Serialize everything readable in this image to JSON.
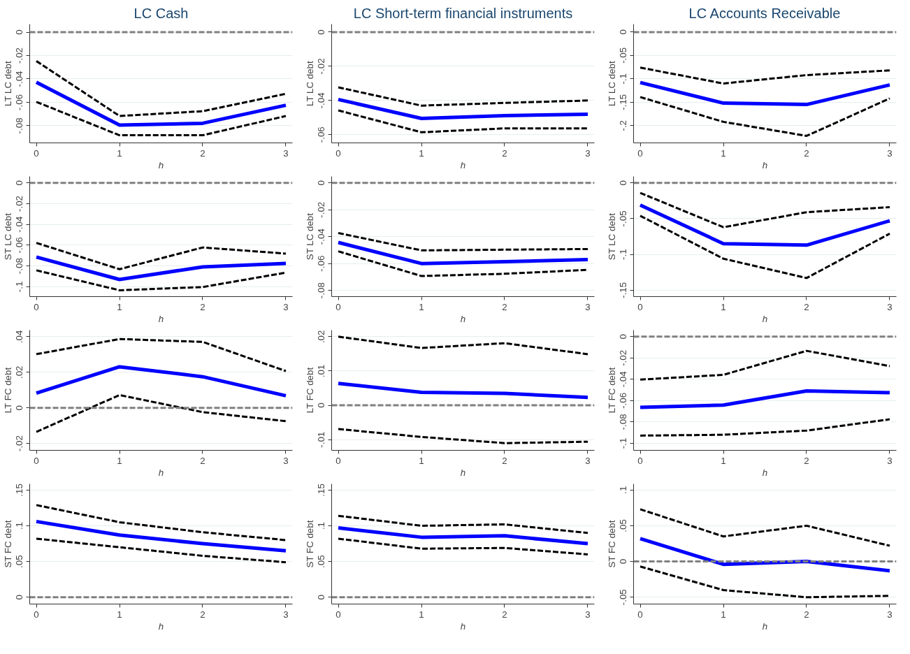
{
  "chart_data": [
    {
      "type": "line",
      "title": "LC Cash",
      "ylabel": "LT LC debt",
      "xlabel": "h",
      "x": [
        0,
        1,
        2,
        3
      ],
      "xlim": [
        -0.08,
        3.08
      ],
      "xticks": [
        0,
        1,
        2,
        3
      ],
      "ylim": [
        -0.0947,
        0.0069
      ],
      "yticks": [
        0,
        {
          "value": -0.02,
          "label": "-.02"
        },
        {
          "value": -0.04,
          "label": "-.04"
        },
        {
          "value": -0.06,
          "label": "-.06"
        },
        {
          "value": -0.08,
          "label": "-.08"
        }
      ],
      "grid": "y",
      "ref_lines": [
        {
          "axis": "y",
          "value": 0,
          "color": "#808080",
          "line_style": "dashed"
        }
      ],
      "series": [
        {
          "color": "#000000",
          "line_style": "dashed",
          "values": [
            -0.0247,
            -0.0717,
            -0.0676,
            -0.0527
          ]
        },
        {
          "color": "#0000ff",
          "line_style": "solid",
          "values": [
            -0.0428,
            -0.0795,
            -0.0779,
            -0.0625
          ]
        },
        {
          "color": "#000000",
          "line_style": "dashed",
          "values": [
            -0.0596,
            -0.0882,
            -0.0882,
            -0.0717
          ]
        }
      ]
    },
    {
      "type": "line",
      "title": "LC Short-term financial instruments",
      "ylabel": "LT LC debt",
      "xlabel": "h",
      "x": [
        0,
        1,
        2,
        3
      ],
      "xlim": [
        -0.08,
        3.08
      ],
      "xticks": [
        0,
        1,
        2,
        3
      ],
      "ylim": [
        -0.0648,
        0.0047
      ],
      "yticks": [
        0,
        {
          "value": -0.02,
          "label": "-.02"
        },
        {
          "value": -0.04,
          "label": "-.04"
        },
        {
          "value": -0.06,
          "label": "-.06"
        }
      ],
      "grid": "y",
      "ref_lines": [
        {
          "axis": "y",
          "value": 0,
          "color": "#808080",
          "line_style": "dashed"
        }
      ],
      "series": [
        {
          "color": "#000000",
          "line_style": "dashed",
          "values": [
            -0.0323,
            -0.043,
            -0.0414,
            -0.04
          ]
        },
        {
          "color": "#0000ff",
          "line_style": "solid",
          "values": [
            -0.0394,
            -0.0505,
            -0.0489,
            -0.048
          ]
        },
        {
          "color": "#000000",
          "line_style": "dashed",
          "values": [
            -0.0458,
            -0.0586,
            -0.0563,
            -0.0563
          ]
        }
      ]
    },
    {
      "type": "line",
      "title": "LC Accounts Receivable",
      "ylabel": "LT LC debt",
      "xlabel": "h",
      "x": [
        0,
        1,
        2,
        3
      ],
      "xlim": [
        -0.08,
        3.08
      ],
      "xticks": [
        0,
        1,
        2,
        3
      ],
      "ylim": [
        -0.237,
        0.017
      ],
      "yticks": [
        0,
        {
          "value": -0.05,
          "label": "-.05"
        },
        {
          "value": -0.1,
          "label": "-.1"
        },
        {
          "value": -0.15,
          "label": "-.15"
        },
        {
          "value": -0.2,
          "label": "-.2"
        }
      ],
      "grid": "y",
      "ref_lines": [
        {
          "axis": "y",
          "value": 0,
          "color": "#808080",
          "line_style": "dashed"
        }
      ],
      "series": [
        {
          "color": "#000000",
          "line_style": "dashed",
          "values": [
            -0.076,
            -0.11,
            -0.092,
            -0.082
          ]
        },
        {
          "color": "#0000ff",
          "line_style": "solid",
          "values": [
            -0.108,
            -0.152,
            -0.155,
            -0.113
          ]
        },
        {
          "color": "#000000",
          "line_style": "dashed",
          "values": [
            -0.139,
            -0.192,
            -0.222,
            -0.142
          ]
        }
      ]
    },
    {
      "type": "line",
      "ylabel": "ST LC debt",
      "xlabel": "h",
      "x": [
        0,
        1,
        2,
        3
      ],
      "xlim": [
        -0.08,
        3.08
      ],
      "xticks": [
        0,
        1,
        2,
        3
      ],
      "ylim": [
        -0.1095,
        0.0062
      ],
      "yticks": [
        0,
        {
          "value": -0.02,
          "label": "-.02"
        },
        {
          "value": -0.04,
          "label": "-.04"
        },
        {
          "value": -0.06,
          "label": "-.06"
        },
        {
          "value": -0.08,
          "label": "-.08"
        },
        {
          "value": -0.1,
          "label": "-.1"
        }
      ],
      "grid": "y",
      "ref_lines": [
        {
          "axis": "y",
          "value": 0,
          "color": "#808080",
          "line_style": "dashed"
        }
      ],
      "series": [
        {
          "color": "#000000",
          "line_style": "dashed",
          "values": [
            -0.0578,
            -0.0831,
            -0.0622,
            -0.0681
          ]
        },
        {
          "color": "#0000ff",
          "line_style": "solid",
          "values": [
            -0.0714,
            -0.093,
            -0.0809,
            -0.0776
          ]
        },
        {
          "color": "#000000",
          "line_style": "dashed",
          "values": [
            -0.0842,
            -0.1034,
            -0.1003,
            -0.0864
          ]
        }
      ]
    },
    {
      "type": "line",
      "ylabel": "ST LC debt",
      "xlabel": "h",
      "x": [
        0,
        1,
        2,
        3
      ],
      "xlim": [
        -0.08,
        3.08
      ],
      "xticks": [
        0,
        1,
        2,
        3
      ],
      "ylim": [
        -0.0846,
        0.0048
      ],
      "yticks": [
        0,
        {
          "value": -0.02,
          "label": "-.02"
        },
        {
          "value": -0.04,
          "label": "-.04"
        },
        {
          "value": -0.06,
          "label": "-.06"
        },
        {
          "value": -0.08,
          "label": "-.08"
        }
      ],
      "grid": "y",
      "ref_lines": [
        {
          "axis": "y",
          "value": 0,
          "color": "#808080",
          "line_style": "dashed"
        }
      ],
      "series": [
        {
          "color": "#000000",
          "line_style": "dashed",
          "values": [
            -0.0373,
            -0.0502,
            -0.0497,
            -0.0492
          ]
        },
        {
          "color": "#0000ff",
          "line_style": "solid",
          "values": [
            -0.0443,
            -0.06,
            -0.0586,
            -0.057
          ]
        },
        {
          "color": "#000000",
          "line_style": "dashed",
          "values": [
            -0.0509,
            -0.0693,
            -0.0676,
            -0.0647
          ]
        }
      ]
    },
    {
      "type": "line",
      "ylabel": "ST LC debt",
      "xlabel": "h",
      "x": [
        0,
        1,
        2,
        3
      ],
      "xlim": [
        -0.08,
        3.08
      ],
      "xticks": [
        0,
        1,
        2,
        3
      ],
      "ylim": [
        -0.159,
        0.009
      ],
      "yticks": [
        0,
        {
          "value": -0.05,
          "label": "-.05"
        },
        {
          "value": -0.1,
          "label": "-.1"
        },
        {
          "value": -0.15,
          "label": "-.15"
        }
      ],
      "grid": "y",
      "ref_lines": [
        {
          "axis": "y",
          "value": 0,
          "color": "#808080",
          "line_style": "dashed"
        }
      ],
      "series": [
        {
          "color": "#000000",
          "line_style": "dashed",
          "values": [
            -0.014,
            -0.062,
            -0.041,
            -0.034
          ]
        },
        {
          "color": "#0000ff",
          "line_style": "solid",
          "values": [
            -0.031,
            -0.085,
            -0.087,
            -0.053
          ]
        },
        {
          "color": "#000000",
          "line_style": "dashed",
          "values": [
            -0.046,
            -0.106,
            -0.133,
            -0.071
          ]
        }
      ]
    },
    {
      "type": "line",
      "ylabel": "LT FC debt",
      "xlabel": "h",
      "x": [
        0,
        1,
        2,
        3
      ],
      "xlim": [
        -0.08,
        3.08
      ],
      "xticks": [
        0,
        1,
        2,
        3
      ],
      "ylim": [
        -0.0239,
        0.0437
      ],
      "yticks": [
        {
          "value": 0.04,
          "label": ".04"
        },
        {
          "value": 0.02,
          "label": ".02"
        },
        0,
        {
          "value": -0.02,
          "label": "-.02"
        }
      ],
      "grid": "y",
      "ref_lines": [
        {
          "axis": "y",
          "value": 0,
          "color": "#808080",
          "line_style": "dashed"
        }
      ],
      "series": [
        {
          "color": "#000000",
          "line_style": "dashed",
          "values": [
            0.0302,
            0.0387,
            0.0371,
            0.0207
          ]
        },
        {
          "color": "#0000ff",
          "line_style": "solid",
          "values": [
            0.0083,
            0.0231,
            0.0175,
            0.0068
          ]
        },
        {
          "color": "#000000",
          "line_style": "dashed",
          "values": [
            -0.0135,
            0.0072,
            -0.0024,
            -0.0075
          ]
        }
      ]
    },
    {
      "type": "line",
      "ylabel": "LT FC debt",
      "xlabel": "h",
      "x": [
        0,
        1,
        2,
        3
      ],
      "xlim": [
        -0.08,
        3.08
      ],
      "xticks": [
        0,
        1,
        2,
        3
      ],
      "ylim": [
        -0.0131,
        0.0219
      ],
      "yticks": [
        {
          "value": 0.02,
          "label": ".02"
        },
        {
          "value": 0.01,
          "label": ".01"
        },
        0,
        {
          "value": -0.01,
          "label": "-.01"
        }
      ],
      "grid": "y",
      "ref_lines": [
        {
          "axis": "y",
          "value": 0,
          "color": "#808080",
          "line_style": "dashed"
        }
      ],
      "series": [
        {
          "color": "#000000",
          "line_style": "dashed",
          "values": [
            0.02,
            0.0167,
            0.0181,
            0.0149
          ]
        },
        {
          "color": "#0000ff",
          "line_style": "solid",
          "values": [
            0.0064,
            0.0038,
            0.0035,
            0.0023
          ]
        },
        {
          "color": "#000000",
          "line_style": "dashed",
          "values": [
            -0.0069,
            -0.0092,
            -0.011,
            -0.0106
          ]
        }
      ]
    },
    {
      "type": "line",
      "ylabel": "LT FC debt",
      "xlabel": "h",
      "x": [
        0,
        1,
        2,
        3
      ],
      "xlim": [
        -0.08,
        3.08
      ],
      "xticks": [
        0,
        1,
        2,
        3
      ],
      "ylim": [
        -0.1066,
        0.0061
      ],
      "yticks": [
        0,
        {
          "value": -0.02,
          "label": "-.02"
        },
        {
          "value": -0.04,
          "label": "-.04"
        },
        {
          "value": -0.06,
          "label": "-.06"
        },
        {
          "value": -0.08,
          "label": "-.08"
        },
        {
          "value": -0.1,
          "label": "-.1"
        }
      ],
      "grid": "y",
      "ref_lines": [
        {
          "axis": "y",
          "value": 0,
          "color": "#808080",
          "line_style": "dashed"
        }
      ],
      "series": [
        {
          "color": "#000000",
          "line_style": "dashed",
          "values": [
            -0.0403,
            -0.0358,
            -0.0133,
            -0.0276
          ]
        },
        {
          "color": "#0000ff",
          "line_style": "solid",
          "values": [
            -0.0663,
            -0.0642,
            -0.0509,
            -0.0525
          ]
        },
        {
          "color": "#000000",
          "line_style": "dashed",
          "values": [
            -0.0928,
            -0.092,
            -0.0881,
            -0.0775
          ]
        }
      ]
    },
    {
      "type": "line",
      "ylabel": "ST FC debt",
      "xlabel": "h",
      "x": [
        0,
        1,
        2,
        3
      ],
      "xlim": [
        -0.08,
        3.08
      ],
      "xticks": [
        0,
        1,
        2,
        3
      ],
      "ylim": [
        -0.0095,
        0.1587
      ],
      "yticks": [
        {
          "value": 0.15,
          "label": ".15"
        },
        {
          "value": 0.1,
          "label": ".1"
        },
        {
          "value": 0.05,
          "label": ".05"
        },
        0
      ],
      "grid": "y",
      "ref_lines": [
        {
          "axis": "y",
          "value": 0,
          "color": "#808080",
          "line_style": "dashed"
        }
      ],
      "series": [
        {
          "color": "#000000",
          "line_style": "dashed",
          "values": [
            0.129,
            0.105,
            0.091,
            0.08
          ]
        },
        {
          "color": "#0000ff",
          "line_style": "solid",
          "values": [
            0.106,
            0.087,
            0.075,
            0.065
          ]
        },
        {
          "color": "#000000",
          "line_style": "dashed",
          "values": [
            0.082,
            0.07,
            0.058,
            0.049
          ]
        }
      ]
    },
    {
      "type": "line",
      "ylabel": "ST FC debt",
      "xlabel": "h",
      "x": [
        0,
        1,
        2,
        3
      ],
      "xlim": [
        -0.08,
        3.08
      ],
      "xticks": [
        0,
        1,
        2,
        3
      ],
      "ylim": [
        -0.0095,
        0.1587
      ],
      "yticks": [
        {
          "value": 0.15,
          "label": ".15"
        },
        {
          "value": 0.1,
          "label": ".1"
        },
        {
          "value": 0.05,
          "label": ".05"
        },
        0
      ],
      "grid": "y",
      "ref_lines": [
        {
          "axis": "y",
          "value": 0,
          "color": "#808080",
          "line_style": "dashed"
        }
      ],
      "series": [
        {
          "color": "#000000",
          "line_style": "dashed",
          "values": [
            0.114,
            0.1,
            0.102,
            0.09
          ]
        },
        {
          "color": "#0000ff",
          "line_style": "solid",
          "values": [
            0.097,
            0.084,
            0.086,
            0.075
          ]
        },
        {
          "color": "#000000",
          "line_style": "dashed",
          "values": [
            0.082,
            0.068,
            0.069,
            0.06
          ]
        }
      ]
    },
    {
      "type": "line",
      "ylabel": "ST FC debt",
      "xlabel": "h",
      "x": [
        0,
        1,
        2,
        3
      ],
      "xlim": [
        -0.08,
        3.08
      ],
      "xticks": [
        0,
        1,
        2,
        3
      ],
      "ylim": [
        -0.0595,
        0.1085
      ],
      "yticks": [
        {
          "value": 0.1,
          "label": ".1"
        },
        {
          "value": 0.05,
          "label": ".05"
        },
        0,
        {
          "value": -0.05,
          "label": "-.05"
        }
      ],
      "grid": "y",
      "ref_lines": [
        {
          "axis": "y",
          "value": 0,
          "color": "#808080",
          "line_style": "dashed"
        }
      ],
      "series": [
        {
          "color": "#000000",
          "line_style": "dashed",
          "values": [
            0.073,
            0.035,
            0.05,
            0.022
          ]
        },
        {
          "color": "#0000ff",
          "line_style": "solid",
          "values": [
            0.032,
            -0.004,
            0,
            -0.013
          ]
        },
        {
          "color": "#000000",
          "line_style": "dashed",
          "values": [
            -0.007,
            -0.04,
            -0.05,
            -0.048
          ]
        }
      ]
    }
  ]
}
